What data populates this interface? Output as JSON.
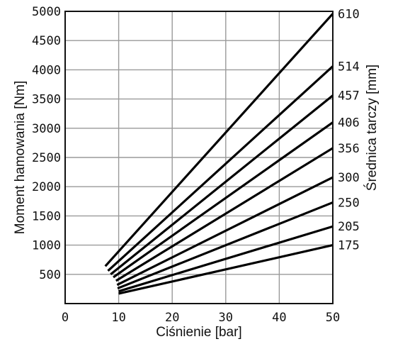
{
  "chart_data": {
    "type": "line",
    "title": "",
    "xlabel": "Ciśnienie [bar]",
    "ylabel": "Moment hamowania [Nm]",
    "y2label": "Średnica tarczy [mm]",
    "xlim": [
      0,
      50
    ],
    "ylim": [
      0,
      5000
    ],
    "x_ticks": [
      0,
      10,
      20,
      30,
      40,
      50
    ],
    "y_ticks": [
      500,
      1000,
      1500,
      2000,
      2500,
      3000,
      3500,
      4000,
      4500,
      5000
    ],
    "grid": true,
    "legend": "series labels at right end of lines",
    "series": [
      {
        "name": "610",
        "x": [
          7.5,
          50
        ],
        "y": [
          640,
          4960
        ]
      },
      {
        "name": "514",
        "x": [
          8,
          50
        ],
        "y": [
          560,
          4060
        ]
      },
      {
        "name": "457",
        "x": [
          8.5,
          50
        ],
        "y": [
          500,
          3560
        ]
      },
      {
        "name": "406",
        "x": [
          9,
          50
        ],
        "y": [
          450,
          3100
        ]
      },
      {
        "name": "356",
        "x": [
          9.5,
          50
        ],
        "y": [
          390,
          2660
        ]
      },
      {
        "name": "300",
        "x": [
          9.7,
          50
        ],
        "y": [
          320,
          2160
        ]
      },
      {
        "name": "250",
        "x": [
          9.8,
          50
        ],
        "y": [
          260,
          1730
        ]
      },
      {
        "name": "205",
        "x": [
          10,
          50
        ],
        "y": [
          210,
          1320
        ]
      },
      {
        "name": "175",
        "x": [
          10,
          50
        ],
        "y": [
          170,
          1000
        ]
      }
    ]
  }
}
